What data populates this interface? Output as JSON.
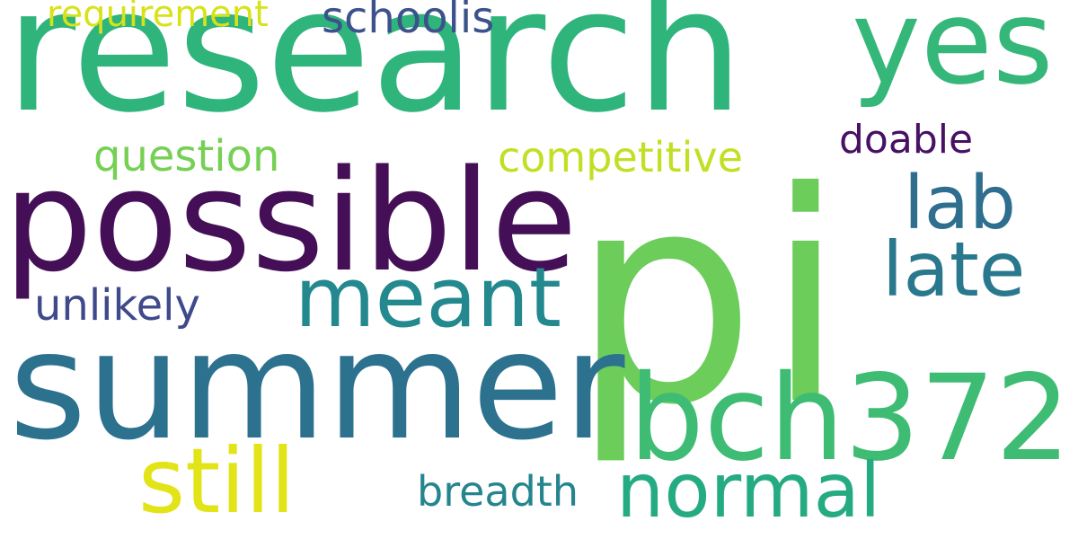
{
  "words": [
    {
      "key": "pi",
      "text": "pi",
      "color": "#6ccd5a"
    },
    {
      "key": "research",
      "text": "research",
      "color": "#2fb47c"
    },
    {
      "key": "summer",
      "text": "summer",
      "color": "#2c728e"
    },
    {
      "key": "possible",
      "text": "possible",
      "color": "#440f57"
    },
    {
      "key": "bch372",
      "text": "bch372",
      "color": "#3fbc73"
    },
    {
      "key": "yes",
      "text": "yes",
      "color": "#35b779"
    },
    {
      "key": "meant",
      "text": "meant",
      "color": "#23898e"
    },
    {
      "key": "still",
      "text": "still",
      "color": "#e2e418"
    },
    {
      "key": "normal",
      "text": "normal",
      "color": "#25ab82"
    },
    {
      "key": "late",
      "text": "late",
      "color": "#2a788e"
    },
    {
      "key": "lab",
      "text": "lab",
      "color": "#2e6e8e"
    },
    {
      "key": "competitive",
      "text": "competitive",
      "color": "#c2df23"
    },
    {
      "key": "question",
      "text": "question",
      "color": "#75d054"
    },
    {
      "key": "doable",
      "text": "doable",
      "color": "#471164"
    },
    {
      "key": "unlikely",
      "text": "unlikely",
      "color": "#3e4a89"
    },
    {
      "key": "breadth",
      "text": "breadth",
      "color": "#25858e"
    },
    {
      "key": "schoolis",
      "text": "schoolis",
      "color": "#3b528b"
    },
    {
      "key": "requirement",
      "text": "requirement",
      "color": "#d8e219"
    }
  ]
}
